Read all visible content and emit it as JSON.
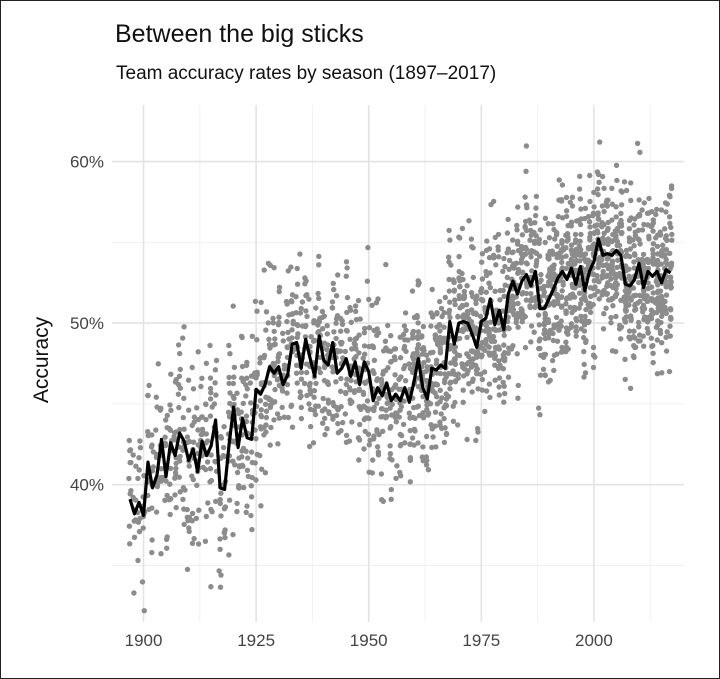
{
  "chart_data": {
    "type": "scatter",
    "title": "Between the big sticks",
    "subtitle": "Team accuracy rates by season (1897–2017)",
    "xlabel": "",
    "ylabel": "Accuracy",
    "xlim": [
      1893,
      2020
    ],
    "ylim": [
      0.315,
      0.635
    ],
    "x_ticks": [
      1900,
      1925,
      1950,
      1975,
      2000
    ],
    "x_tick_labels": [
      "1900",
      "1925",
      "1950",
      "1975",
      "2000"
    ],
    "y_ticks": [
      0.4,
      0.5,
      0.6
    ],
    "y_tick_labels": [
      "40%",
      "50%",
      "60%"
    ],
    "grid": true,
    "legend": "none",
    "colors": {
      "points": "#8c8c8c",
      "line": "#000000",
      "grid": "#e3e3e3"
    },
    "series": [
      {
        "type": "line",
        "x": [
          1897,
          1898,
          1899,
          1900,
          1901,
          1902,
          1903,
          1904,
          1905,
          1906,
          1907,
          1908,
          1909,
          1910,
          1911,
          1912,
          1913,
          1914,
          1915,
          1916,
          1917,
          1918,
          1919,
          1920,
          1921,
          1922,
          1923,
          1924,
          1925,
          1926,
          1927,
          1928,
          1929,
          1930,
          1931,
          1932,
          1933,
          1934,
          1935,
          1936,
          1937,
          1938,
          1939,
          1940,
          1941,
          1942,
          1943,
          1944,
          1945,
          1946,
          1947,
          1948,
          1949,
          1950,
          1951,
          1952,
          1953,
          1954,
          1955,
          1956,
          1957,
          1958,
          1959,
          1960,
          1961,
          1962,
          1963,
          1964,
          1965,
          1966,
          1967,
          1968,
          1969,
          1970,
          1971,
          1972,
          1973,
          1974,
          1975,
          1976,
          1977,
          1978,
          1979,
          1980,
          1981,
          1982,
          1983,
          1984,
          1985,
          1986,
          1987,
          1988,
          1989,
          1990,
          1991,
          1992,
          1993,
          1994,
          1995,
          1996,
          1997,
          1998,
          1999,
          2000,
          2001,
          2002,
          2003,
          2004,
          2005,
          2006,
          2007,
          2008,
          2009,
          2010,
          2011,
          2012,
          2013,
          2014,
          2015,
          2016,
          2017
        ],
        "y": [
          0.391,
          0.382,
          0.389,
          0.381,
          0.414,
          0.398,
          0.406,
          0.428,
          0.405,
          0.426,
          0.418,
          0.432,
          0.427,
          0.415,
          0.422,
          0.408,
          0.427,
          0.418,
          0.424,
          0.44,
          0.398,
          0.397,
          0.425,
          0.448,
          0.423,
          0.441,
          0.429,
          0.428,
          0.459,
          0.456,
          0.462,
          0.473,
          0.469,
          0.473,
          0.462,
          0.468,
          0.487,
          0.488,
          0.472,
          0.49,
          0.478,
          0.467,
          0.492,
          0.477,
          0.474,
          0.488,
          0.469,
          0.472,
          0.478,
          0.467,
          0.476,
          0.462,
          0.476,
          0.47,
          0.452,
          0.46,
          0.455,
          0.463,
          0.452,
          0.456,
          0.452,
          0.46,
          0.451,
          0.463,
          0.478,
          0.46,
          0.453,
          0.472,
          0.471,
          0.474,
          0.472,
          0.501,
          0.487,
          0.5,
          0.501,
          0.5,
          0.493,
          0.485,
          0.501,
          0.503,
          0.515,
          0.499,
          0.508,
          0.496,
          0.518,
          0.526,
          0.518,
          0.526,
          0.53,
          0.523,
          0.532,
          0.509,
          0.509,
          0.515,
          0.521,
          0.528,
          0.532,
          0.527,
          0.534,
          0.524,
          0.535,
          0.52,
          0.532,
          0.538,
          0.552,
          0.542,
          0.543,
          0.542,
          0.545,
          0.542,
          0.524,
          0.523,
          0.527,
          0.537,
          0.522,
          0.532,
          0.529,
          0.532,
          0.525,
          0.533,
          0.531
        ]
      }
    ],
    "scatter": {
      "n_points": 2200,
      "seasons": [
        1897,
        2017
      ],
      "note": ""
    }
  }
}
